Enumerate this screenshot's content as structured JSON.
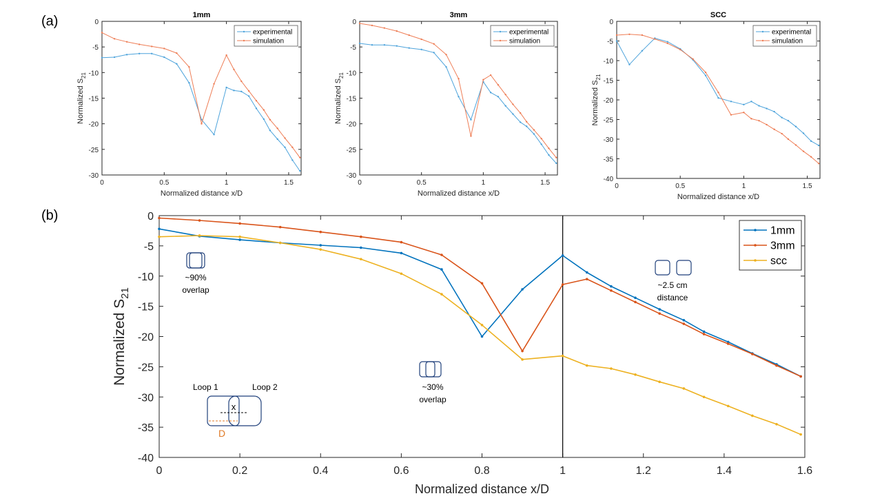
{
  "panel_labels": {
    "a": "(a)",
    "b": "(b)"
  },
  "colors": {
    "blue": "#0072BD",
    "orange": "#D95319",
    "yellow": "#EDB120",
    "small_blue": "#4DA3DB",
    "small_orange": "#EE7D55",
    "loop": "#1F3F7A",
    "d_line": "#E07B28"
  },
  "chart_data": [
    {
      "type": "line",
      "title": "1mm",
      "xlabel": "Normalized distance x/D",
      "ylabel": "Normalized S",
      "ylabel_sub": "21",
      "xlim": [
        0,
        1.6
      ],
      "ylim": [
        -30,
        0
      ],
      "xticks": [
        0,
        0.5,
        1,
        1.5
      ],
      "xtick_labels": [
        "0",
        "0.5",
        "1",
        "1.5"
      ],
      "yticks": [
        0,
        -5,
        -10,
        -15,
        -20,
        -25,
        -30
      ],
      "ytick_labels": [
        "0",
        "-5",
        "-10",
        "-15",
        "-20",
        "-25",
        "-30"
      ],
      "x": [
        0,
        0.1,
        0.2,
        0.3,
        0.4,
        0.5,
        0.6,
        0.7,
        0.8,
        0.9,
        1.0,
        1.06,
        1.12,
        1.18,
        1.24,
        1.3,
        1.35,
        1.41,
        1.47,
        1.53,
        1.59
      ],
      "series": [
        {
          "name": "experimental",
          "color_key": "small_blue",
          "values": [
            -7.1,
            -7.0,
            -6.5,
            -6.3,
            -6.3,
            -7.0,
            -8.3,
            -12.0,
            -19.2,
            -22.1,
            -12.9,
            -13.5,
            -13.7,
            -14.6,
            -17.0,
            -19.1,
            -21.3,
            -23.0,
            -24.6,
            -27.1,
            -29.2
          ]
        },
        {
          "name": "simulation",
          "color_key": "small_orange",
          "values": [
            -2.2,
            -3.4,
            -4.0,
            -4.5,
            -4.9,
            -5.3,
            -6.2,
            -8.9,
            -20.0,
            -12.2,
            -6.6,
            -9.4,
            -11.7,
            -13.6,
            -15.5,
            -17.3,
            -19.2,
            -20.9,
            -22.8,
            -24.6,
            -26.6
          ]
        }
      ],
      "legend": "top-right"
    },
    {
      "type": "line",
      "title": "3mm",
      "xlabel": "Normalized distance x/D",
      "ylabel": "Normalized S",
      "ylabel_sub": "21",
      "xlim": [
        0,
        1.6
      ],
      "ylim": [
        -30,
        0
      ],
      "xticks": [
        0,
        0.5,
        1,
        1.5
      ],
      "xtick_labels": [
        "0",
        "0.5",
        "1",
        "1.5"
      ],
      "yticks": [
        0,
        -5,
        -10,
        -15,
        -20,
        -25,
        -30
      ],
      "ytick_labels": [
        "0",
        "-5",
        "-10",
        "-15",
        "-20",
        "-25",
        "-30"
      ],
      "x": [
        0,
        0.1,
        0.2,
        0.3,
        0.4,
        0.5,
        0.6,
        0.7,
        0.8,
        0.9,
        1.0,
        1.06,
        1.12,
        1.18,
        1.24,
        1.3,
        1.35,
        1.41,
        1.47,
        1.53,
        1.59
      ],
      "series": [
        {
          "name": "experimental",
          "color_key": "small_blue",
          "values": [
            -4.3,
            -4.6,
            -4.6,
            -4.8,
            -5.2,
            -5.5,
            -6.1,
            -8.9,
            -14.7,
            -19.2,
            -11.8,
            -13.9,
            -14.7,
            -16.5,
            -18.1,
            -19.7,
            -20.5,
            -22.0,
            -24.0,
            -26.1,
            -27.7
          ]
        },
        {
          "name": "simulation",
          "color_key": "small_orange",
          "values": [
            -0.4,
            -0.8,
            -1.3,
            -1.9,
            -2.7,
            -3.5,
            -4.4,
            -6.5,
            -11.2,
            -22.4,
            -11.4,
            -10.5,
            -12.4,
            -14.3,
            -16.2,
            -17.9,
            -19.6,
            -21.2,
            -22.9,
            -24.8,
            -26.6
          ]
        }
      ],
      "legend": "top-right"
    },
    {
      "type": "line",
      "title": "SCC",
      "xlabel": "Normalized distance x/D",
      "ylabel": "Normalized S",
      "ylabel_sub": "21",
      "xlim": [
        0,
        1.6
      ],
      "ylim": [
        -40,
        0
      ],
      "xticks": [
        0,
        0.5,
        1,
        1.5
      ],
      "xtick_labels": [
        "0",
        "0.5",
        "1",
        "1.5"
      ],
      "yticks": [
        0,
        -5,
        -10,
        -15,
        -20,
        -25,
        -30,
        -35,
        -40
      ],
      "ytick_labels": [
        "0",
        "-5",
        "-10",
        "-15",
        "-20",
        "-25",
        "-30",
        "-35",
        "-40"
      ],
      "x": [
        0,
        0.1,
        0.2,
        0.3,
        0.4,
        0.5,
        0.6,
        0.7,
        0.8,
        0.9,
        1.0,
        1.06,
        1.12,
        1.18,
        1.24,
        1.3,
        1.35,
        1.41,
        1.47,
        1.53,
        1.59
      ],
      "series": [
        {
          "name": "experimental",
          "color_key": "small_blue",
          "values": [
            -5.0,
            -11.0,
            -7.5,
            -4.3,
            -5.2,
            -7.0,
            -9.8,
            -13.8,
            -19.5,
            -20.4,
            -21.2,
            -20.4,
            -21.5,
            -22.2,
            -23.0,
            -24.5,
            -25.3,
            -26.8,
            -28.5,
            -30.5,
            -31.6
          ]
        },
        {
          "name": "simulation",
          "color_key": "small_orange",
          "values": [
            -3.5,
            -3.3,
            -3.5,
            -4.5,
            -5.6,
            -7.2,
            -9.6,
            -13.0,
            -18.1,
            -23.8,
            -23.2,
            -24.8,
            -25.3,
            -26.3,
            -27.5,
            -28.6,
            -30.0,
            -31.5,
            -33.1,
            -34.5,
            -36.2
          ]
        }
      ],
      "legend": "top-right"
    },
    {
      "type": "line",
      "title": "",
      "xlabel": "Normalized distance x/D",
      "ylabel": "Normalized S",
      "ylabel_sub": "21",
      "xlim": [
        0,
        1.6
      ],
      "ylim": [
        -40,
        0
      ],
      "xticks": [
        0,
        0.2,
        0.4,
        0.6,
        0.8,
        1,
        1.2,
        1.4,
        1.6
      ],
      "xtick_labels": [
        "0",
        "0.2",
        "0.4",
        "0.6",
        "0.8",
        "1",
        "1.2",
        "1.4",
        "1.6"
      ],
      "yticks": [
        0,
        -5,
        -10,
        -15,
        -20,
        -25,
        -30,
        -35,
        -40
      ],
      "ytick_labels": [
        "0",
        "-5",
        "-10",
        "-15",
        "-20",
        "-25",
        "-30",
        "-35",
        "-40"
      ],
      "vline_x": 1.0,
      "x": [
        0,
        0.1,
        0.2,
        0.3,
        0.4,
        0.5,
        0.6,
        0.7,
        0.8,
        0.9,
        1.0,
        1.06,
        1.12,
        1.18,
        1.24,
        1.3,
        1.35,
        1.41,
        1.47,
        1.53,
        1.59
      ],
      "series": [
        {
          "name": "1mm",
          "color_key": "blue",
          "values": [
            -2.2,
            -3.4,
            -4.0,
            -4.5,
            -4.9,
            -5.3,
            -6.2,
            -8.9,
            -20.0,
            -12.2,
            -6.6,
            -9.4,
            -11.7,
            -13.6,
            -15.5,
            -17.3,
            -19.2,
            -20.9,
            -22.8,
            -24.6,
            -26.6
          ]
        },
        {
          "name": "3mm",
          "color_key": "orange",
          "values": [
            -0.4,
            -0.8,
            -1.3,
            -1.9,
            -2.7,
            -3.5,
            -4.4,
            -6.5,
            -11.2,
            -22.4,
            -11.4,
            -10.5,
            -12.4,
            -14.3,
            -16.2,
            -17.9,
            -19.6,
            -21.2,
            -22.9,
            -24.8,
            -26.6
          ]
        },
        {
          "name": "scc",
          "color_key": "yellow",
          "values": [
            -3.5,
            -3.3,
            -3.5,
            -4.5,
            -5.6,
            -7.2,
            -9.6,
            -13.0,
            -18.1,
            -23.8,
            -23.2,
            -24.8,
            -25.3,
            -26.3,
            -27.5,
            -28.6,
            -30.0,
            -31.5,
            -33.1,
            -34.5,
            -36.2
          ]
        }
      ],
      "legend": "top-right",
      "annotations": {
        "overlap90_line1": "~90%",
        "overlap90_line2": "overlap",
        "overlap30_line1": "~30%",
        "overlap30_line2": "overlap",
        "distance_line1": "~2.5 cm",
        "distance_line2": "distance",
        "loop1": "Loop 1",
        "loop2": "Loop 2",
        "x_marker": "x",
        "d_marker": "D"
      }
    }
  ]
}
